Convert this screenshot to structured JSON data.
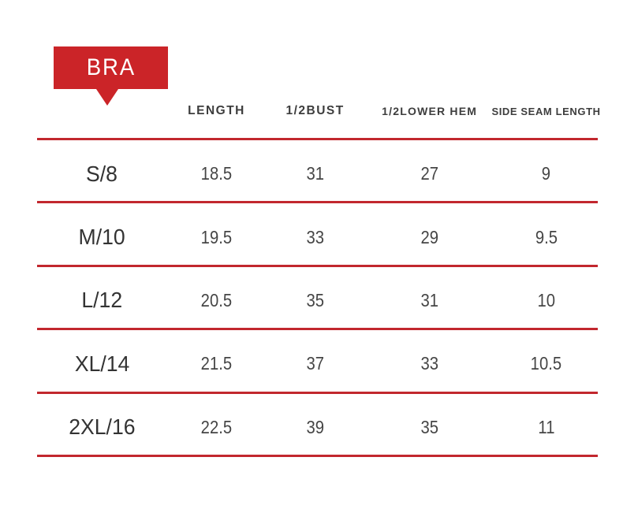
{
  "page": {
    "background_color": "#ffffff"
  },
  "badge": {
    "label": "BRA",
    "background_color": "#cb2428",
    "text_color": "#ffffff"
  },
  "table": {
    "divider_color": "#c2272e",
    "header_text_color": "#3d3d3d"
  },
  "chart_data": {
    "type": "table",
    "title": "BRA",
    "columns": [
      "",
      "LENGTH",
      "1/2BUST",
      "1/2LOWER HEM",
      "SIDE SEAM LENGTH"
    ],
    "rows": [
      [
        "S/8",
        "18.5",
        "31",
        "27",
        "9"
      ],
      [
        "M/10",
        "19.5",
        "33",
        "29",
        "9.5"
      ],
      [
        "L/12",
        "20.5",
        "35",
        "31",
        "10"
      ],
      [
        "XL/14",
        "21.5",
        "37",
        "33",
        "10.5"
      ],
      [
        "2XL/16",
        "22.5",
        "39",
        "35",
        "11"
      ]
    ],
    "layout": {
      "grid": "horizontal red dividers between rows",
      "legend": "none"
    }
  }
}
